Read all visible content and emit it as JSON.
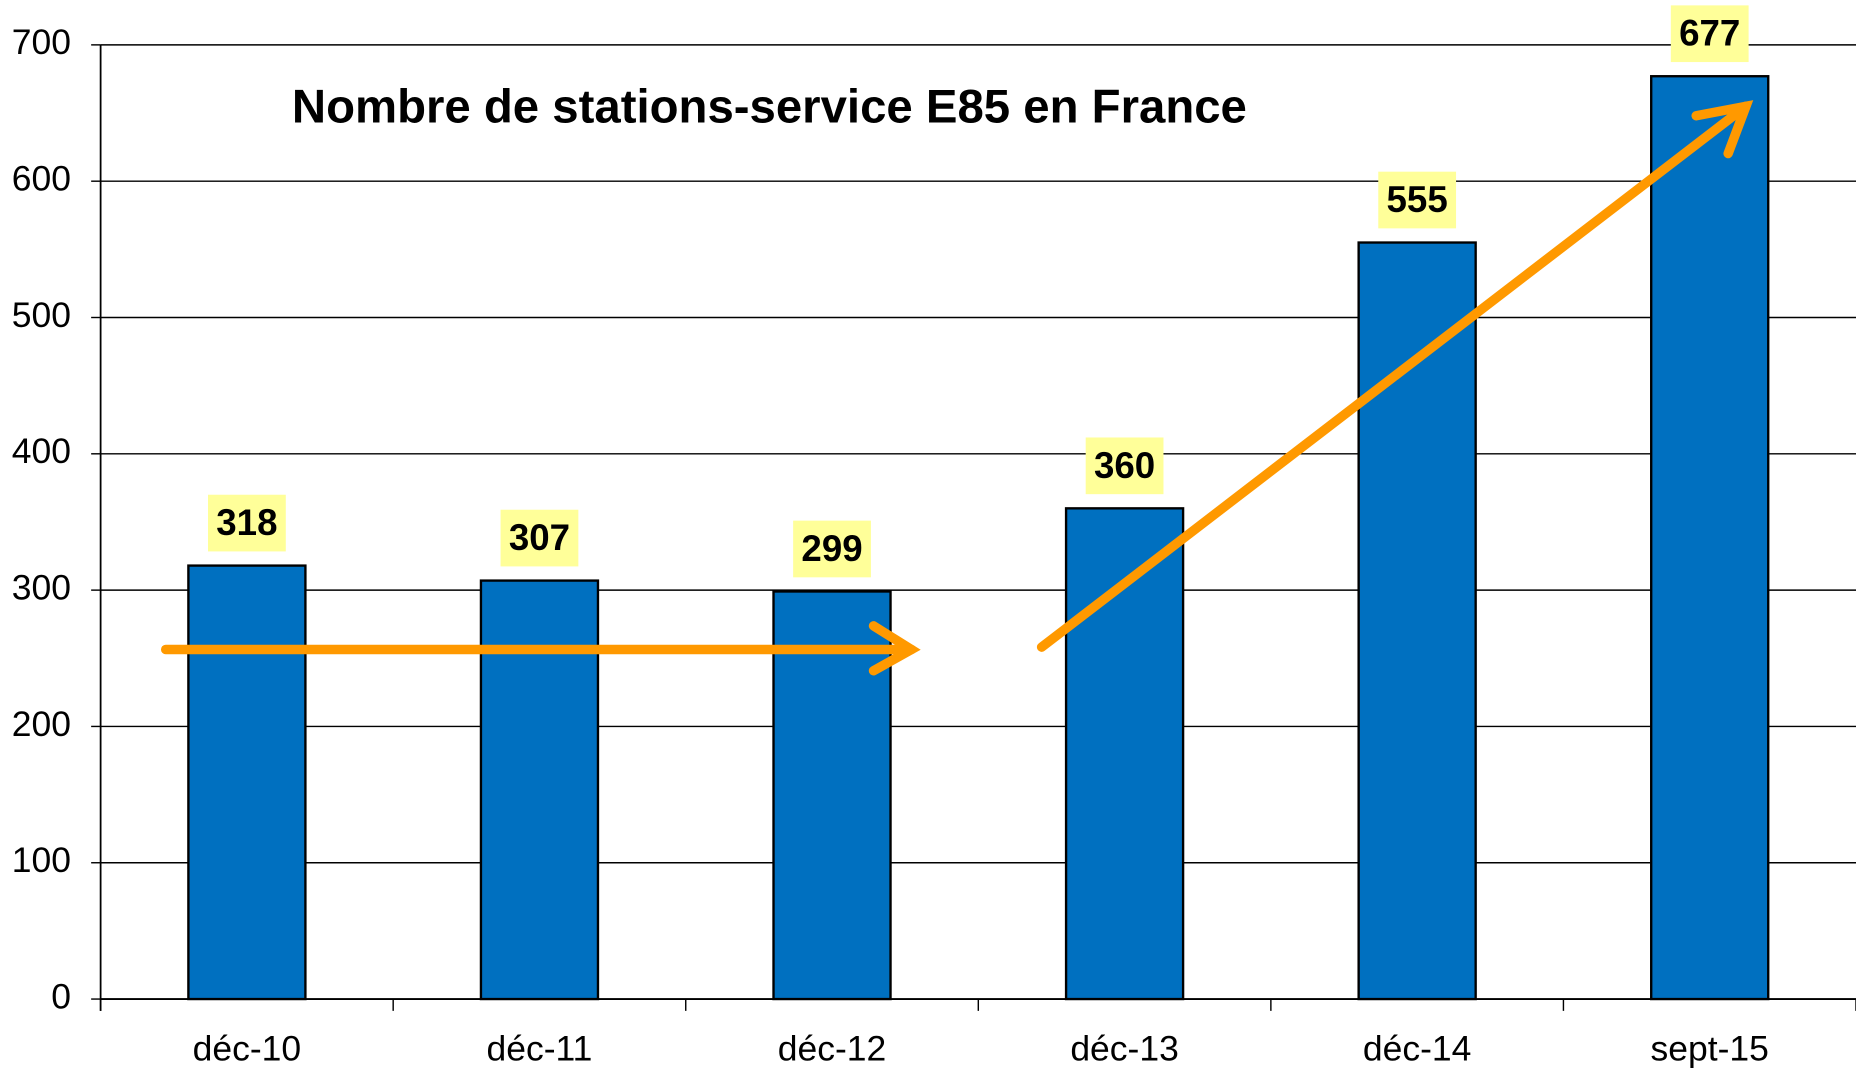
{
  "chart_data": {
    "type": "bar",
    "title": "Nombre de stations-service E85 en France",
    "categories": [
      "déc-10",
      "déc-11",
      "déc-12",
      "déc-13",
      "déc-14",
      "sept-15"
    ],
    "values": [
      318,
      307,
      299,
      360,
      555,
      677
    ],
    "color": "#0070c0",
    "ylim": [
      0,
      700
    ],
    "yticks": [
      0,
      100,
      200,
      300,
      400,
      500,
      600,
      700
    ],
    "grid": true
  }
}
